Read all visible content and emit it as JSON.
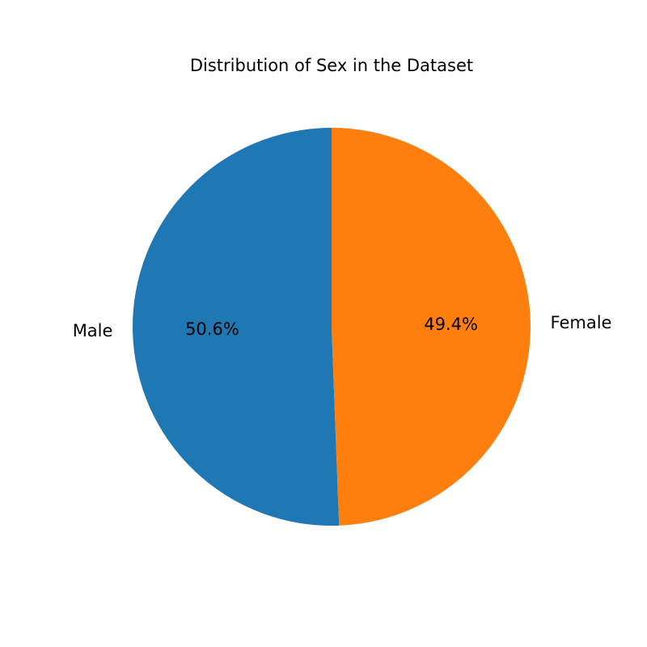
{
  "chart_data": {
    "type": "pie",
    "title": "Distribution of Sex in the Dataset",
    "slices": [
      {
        "label": "Male",
        "value": 50.6,
        "pct_label": "50.6%",
        "color": "#1f77b4"
      },
      {
        "label": "Female",
        "value": 49.4,
        "pct_label": "49.4%",
        "color": "#ff7f0e"
      }
    ],
    "start_angle_deg": 90,
    "direction": "counterclockwise"
  }
}
